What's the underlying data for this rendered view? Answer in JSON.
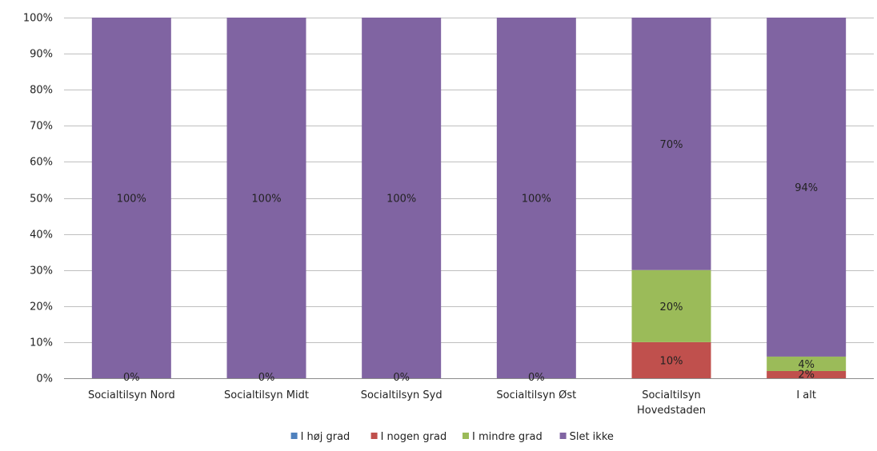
{
  "chart_data": {
    "type": "bar",
    "stacked": true,
    "title": "",
    "xlabel": "",
    "ylabel": "",
    "ylim": [
      0,
      100
    ],
    "yticks": [
      "0%",
      "10%",
      "20%",
      "30%",
      "40%",
      "50%",
      "60%",
      "70%",
      "80%",
      "90%",
      "100%"
    ],
    "grid": true,
    "legend_position": "bottom",
    "categories": [
      [
        "Socialtilsyn Nord"
      ],
      [
        "Socialtilsyn Midt"
      ],
      [
        "Socialtilsyn Syd"
      ],
      [
        "Socialtilsyn Øst"
      ],
      [
        "Socialtilsyn",
        "Hovedstaden"
      ],
      [
        "I alt"
      ]
    ],
    "series": [
      {
        "name": "I høj grad",
        "color": "#4f81bd",
        "values": [
          0,
          0,
          0,
          0,
          0,
          0
        ]
      },
      {
        "name": "I nogen grad",
        "color": "#c0504d",
        "values": [
          0,
          0,
          0,
          0,
          10,
          2
        ]
      },
      {
        "name": "I mindre grad",
        "color": "#9bbb59",
        "values": [
          0,
          0,
          0,
          0,
          20,
          4
        ]
      },
      {
        "name": "Slet ikke",
        "color": "#8064a2",
        "values": [
          100,
          100,
          100,
          100,
          70,
          94
        ]
      }
    ],
    "data_labels": [
      {
        "category": 0,
        "series": 0,
        "text": "0%"
      },
      {
        "category": 1,
        "series": 0,
        "text": "0%"
      },
      {
        "category": 2,
        "series": 0,
        "text": "0%"
      },
      {
        "category": 3,
        "series": 0,
        "text": "0%"
      },
      {
        "category": 4,
        "series": 1,
        "text": "10%"
      },
      {
        "category": 4,
        "series": 2,
        "text": "20%"
      },
      {
        "category": 4,
        "series": 3,
        "text": "70%"
      },
      {
        "category": 5,
        "series": 1,
        "text": "2%"
      },
      {
        "category": 5,
        "series": 2,
        "text": "4%"
      },
      {
        "category": 5,
        "series": 3,
        "text": "94%"
      },
      {
        "category": 0,
        "series": 3,
        "text": "100%"
      },
      {
        "category": 1,
        "series": 3,
        "text": "100%"
      },
      {
        "category": 2,
        "series": 3,
        "text": "100%"
      },
      {
        "category": 3,
        "series": 3,
        "text": "100%"
      }
    ]
  }
}
